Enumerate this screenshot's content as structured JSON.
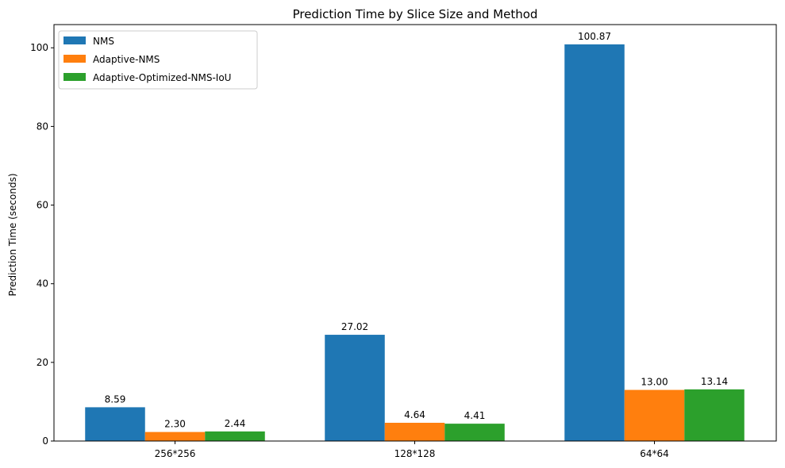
{
  "chart_data": {
    "type": "bar",
    "title": "Prediction Time by Slice Size and Method",
    "xlabel": "",
    "ylabel": "Prediction Time (seconds)",
    "categories": [
      "256*256",
      "128*128",
      "64*64"
    ],
    "series": [
      {
        "name": "NMS",
        "values": [
          8.59,
          27.02,
          100.87
        ],
        "labels": [
          "8.59",
          "27.02",
          "100.87"
        ],
        "color": "#1f77b4"
      },
      {
        "name": "Adaptive-NMS",
        "values": [
          2.3,
          4.64,
          13.0
        ],
        "labels": [
          "2.30",
          "4.64",
          "13.00"
        ],
        "color": "#ff7f0e"
      },
      {
        "name": "Adaptive-Optimized-NMS-IoU",
        "values": [
          2.44,
          4.41,
          13.14
        ],
        "labels": [
          "2.44",
          "4.41",
          "13.14"
        ],
        "color": "#2ca02c"
      }
    ],
    "ylim": [
      0,
      105.9
    ],
    "yticks": [
      0,
      20,
      40,
      60,
      80,
      100
    ],
    "grid": false,
    "legend_position": "top-left"
  }
}
